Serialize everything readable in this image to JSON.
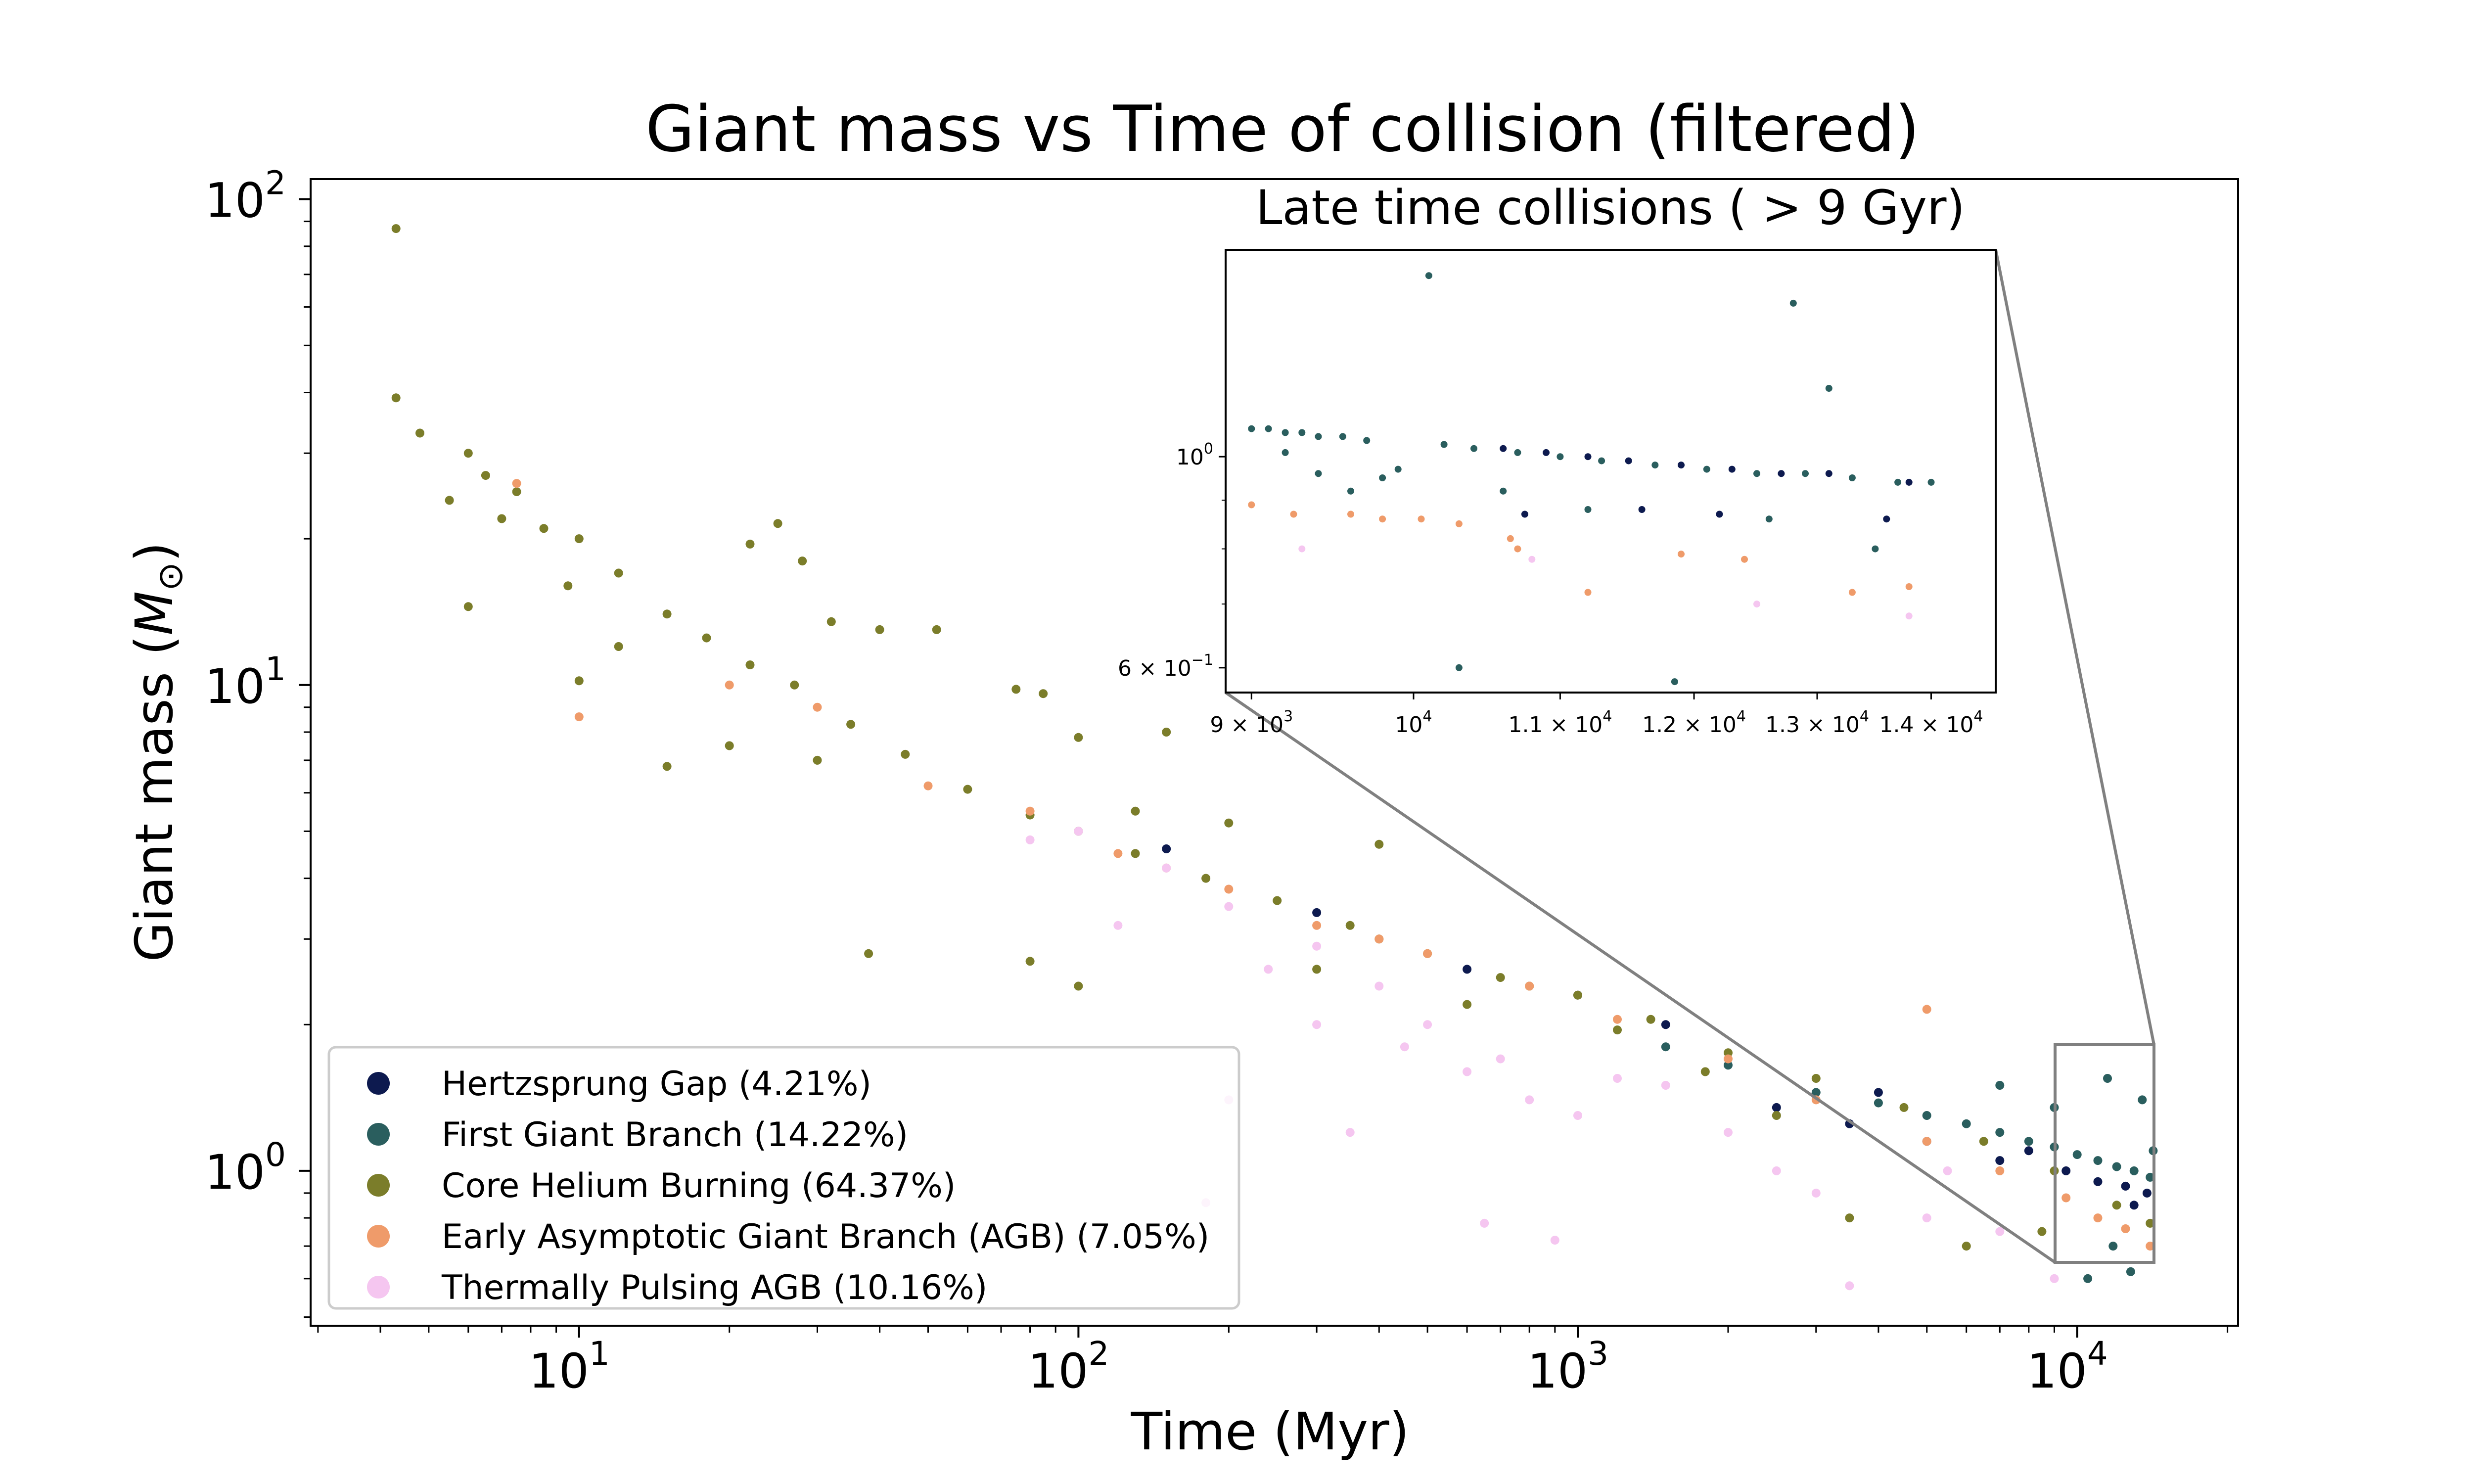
{
  "chart_data": [
    {
      "type": "scatter",
      "title": "Giant mass vs Time of collision (filtered)",
      "xlabel": "Time (Myr)",
      "ylabel_prefix": "Giant mass (",
      "ylabel_symbol": "M",
      "ylabel_subscript": "⊙",
      "ylabel_suffix": ")",
      "xscale": "log",
      "yscale": "log",
      "xlim": [
        2.9,
        21000
      ],
      "ylim": [
        0.48,
        110
      ],
      "grid": false,
      "legend_position": "lower-left",
      "x_ticks": [
        {
          "value": 10,
          "base": "10",
          "exp": "1"
        },
        {
          "value": 100,
          "base": "10",
          "exp": "2"
        },
        {
          "value": 1000,
          "base": "10",
          "exp": "3"
        },
        {
          "value": 10000,
          "base": "10",
          "exp": "4"
        }
      ],
      "y_ticks": [
        {
          "value": 1,
          "base": "10",
          "exp": "0"
        },
        {
          "value": 10,
          "base": "10",
          "exp": "1"
        },
        {
          "value": 100,
          "base": "10",
          "exp": "2"
        }
      ],
      "series": [
        {
          "name": "Hertzsprung Gap (4.21%)",
          "color": "#0d1a4f",
          "points": [
            [
              150,
              4.6
            ],
            [
              300,
              3.4
            ],
            [
              600,
              2.6
            ],
            [
              1000,
              2.3
            ],
            [
              1500,
              2.0
            ],
            [
              2500,
              1.35
            ],
            [
              3500,
              1.25
            ],
            [
              5000,
              1.15
            ],
            [
              7000,
              1.05
            ],
            [
              9500,
              1.0
            ],
            [
              11000,
              0.95
            ],
            [
              12500,
              0.93
            ],
            [
              13800,
              0.9
            ],
            [
              4000,
              1.45
            ],
            [
              8000,
              1.1
            ],
            [
              13000,
              0.85
            ]
          ]
        },
        {
          "name": "First Giant Branch (14.22%)",
          "color": "#2a5e5e",
          "points": [
            [
              1500,
              1.8
            ],
            [
              2000,
              1.65
            ],
            [
              3000,
              1.45
            ],
            [
              4000,
              1.38
            ],
            [
              5000,
              1.3
            ],
            [
              6000,
              1.25
            ],
            [
              7000,
              1.2
            ],
            [
              8000,
              1.15
            ],
            [
              9000,
              1.12
            ],
            [
              10000,
              1.08
            ],
            [
              11000,
              1.05
            ],
            [
              12000,
              1.02
            ],
            [
              13000,
              1.0
            ],
            [
              14000,
              0.97
            ],
            [
              11500,
              1.55
            ],
            [
              13500,
              1.4
            ],
            [
              10500,
              0.6
            ],
            [
              12800,
              0.62
            ],
            [
              11800,
              0.7
            ],
            [
              7000,
              1.5
            ],
            [
              9000,
              1.35
            ],
            [
              14200,
              1.1
            ]
          ]
        },
        {
          "name": "Core Helium Burning (64.37%)",
          "color": "#7b7d2a",
          "points": [
            [
              4.3,
              87
            ],
            [
              4.3,
              39
            ],
            [
              4.8,
              33
            ],
            [
              5.5,
              24
            ],
            [
              6.0,
              30
            ],
            [
              6.5,
              27
            ],
            [
              7.5,
              25
            ],
            [
              8.5,
              21
            ],
            [
              10,
              20
            ],
            [
              12,
              17
            ],
            [
              15,
              14
            ],
            [
              18,
              12.5
            ],
            [
              22,
              11
            ],
            [
              27,
              10
            ],
            [
              35,
              8.3
            ],
            [
              45,
              7.2
            ],
            [
              60,
              6.1
            ],
            [
              80,
              5.4
            ],
            [
              100,
              5.0
            ],
            [
              130,
              4.5
            ],
            [
              180,
              4.0
            ],
            [
              250,
              3.6
            ],
            [
              350,
              3.2
            ],
            [
              500,
              2.8
            ],
            [
              700,
              2.5
            ],
            [
              1000,
              2.3
            ],
            [
              1400,
              2.05
            ],
            [
              2000,
              1.75
            ],
            [
              3000,
              1.55
            ],
            [
              4500,
              1.35
            ],
            [
              6500,
              1.15
            ],
            [
              9000,
              1.0
            ],
            [
              12000,
              0.85
            ],
            [
              14000,
              0.78
            ],
            [
              22,
              19.5
            ],
            [
              25,
              21.5
            ],
            [
              28,
              18
            ],
            [
              32,
              13.5
            ],
            [
              40,
              13
            ],
            [
              52,
              13
            ],
            [
              75,
              9.8
            ],
            [
              85,
              9.6
            ],
            [
              100,
              7.8
            ],
            [
              130,
              5.5
            ],
            [
              150,
              8
            ],
            [
              200,
              5.2
            ],
            [
              400,
              4.7
            ],
            [
              300,
              2.6
            ],
            [
              400,
              3.0
            ],
            [
              600,
              2.2
            ],
            [
              800,
              2.4
            ],
            [
              1200,
              1.95
            ],
            [
              1800,
              1.6
            ],
            [
              2500,
              1.3
            ],
            [
              3500,
              0.8
            ],
            [
              6000,
              0.7
            ],
            [
              8500,
              0.75
            ],
            [
              10,
              10.2
            ],
            [
              20,
              7.5
            ],
            [
              30,
              7.0
            ],
            [
              38,
              2.8
            ],
            [
              80,
              2.7
            ],
            [
              100,
              2.4
            ],
            [
              15,
              6.8
            ],
            [
              6,
              14.5
            ],
            [
              7,
              22
            ],
            [
              9.5,
              16
            ],
            [
              12,
              12
            ]
          ]
        },
        {
          "name": "Early Asymptotic Giant Branch (AGB) (7.05%)",
          "color": "#ef9b6a",
          "points": [
            [
              10,
              8.6
            ],
            [
              20,
              10
            ],
            [
              30,
              9
            ],
            [
              50,
              6.2
            ],
            [
              80,
              5.5
            ],
            [
              120,
              4.5
            ],
            [
              200,
              3.8
            ],
            [
              300,
              3.2
            ],
            [
              500,
              2.8
            ],
            [
              800,
              2.4
            ],
            [
              1200,
              2.05
            ],
            [
              2000,
              1.7
            ],
            [
              3000,
              1.4
            ],
            [
              5000,
              2.15
            ],
            [
              5000,
              1.15
            ],
            [
              7000,
              1.0
            ],
            [
              9500,
              0.88
            ],
            [
              11000,
              0.8
            ],
            [
              12500,
              0.76
            ],
            [
              14000,
              0.7
            ],
            [
              7.5,
              26
            ],
            [
              400,
              3.0
            ],
            [
              150,
              4.2
            ]
          ]
        },
        {
          "name": "Thermally Pulsing AGB (10.16%)",
          "color": "#f5c6f0",
          "points": [
            [
              80,
              4.8
            ],
            [
              100,
              5.0
            ],
            [
              150,
              4.2
            ],
            [
              200,
              3.5
            ],
            [
              300,
              2.9
            ],
            [
              400,
              2.4
            ],
            [
              500,
              2.0
            ],
            [
              600,
              1.6
            ],
            [
              700,
              1.7
            ],
            [
              800,
              1.4
            ],
            [
              1000,
              1.3
            ],
            [
              1200,
              1.55
            ],
            [
              1500,
              1.5
            ],
            [
              2000,
              1.2
            ],
            [
              2500,
              1.0
            ],
            [
              3000,
              0.9
            ],
            [
              5000,
              0.8
            ],
            [
              7000,
              0.75
            ],
            [
              200,
              1.4
            ],
            [
              350,
              1.2
            ],
            [
              180,
              0.86
            ],
            [
              650,
              0.78
            ],
            [
              900,
              0.72
            ],
            [
              3500,
              0.58
            ],
            [
              5500,
              1.0
            ],
            [
              9000,
              0.6
            ],
            [
              300,
              2.0
            ],
            [
              450,
              1.8
            ],
            [
              120,
              3.2
            ],
            [
              240,
              2.6
            ]
          ]
        }
      ]
    },
    {
      "type": "scatter",
      "title": "Late time collisions ( > 9 Gyr)",
      "xscale": "log",
      "yscale": "log",
      "xlim": [
        8850,
        14600
      ],
      "ylim": [
        0.565,
        1.65
      ],
      "grid": false,
      "x_ticks": [
        {
          "value": 9000,
          "mant": "9",
          "exp": "3"
        },
        {
          "value": 10000,
          "mant": "",
          "exp": "4"
        },
        {
          "value": 11000,
          "mant": "1.1",
          "exp": "4"
        },
        {
          "value": 12000,
          "mant": "1.2",
          "exp": "4"
        },
        {
          "value": 13000,
          "mant": "1.3",
          "exp": "4"
        },
        {
          "value": 14000,
          "mant": "1.4",
          "exp": "4"
        }
      ],
      "y_ticks": [
        {
          "value": 1,
          "mant": "",
          "exp": "0"
        },
        {
          "value": 0.6,
          "mant": "6",
          "exp": "−1"
        }
      ],
      "series_points": [
        {
          "color": "#2a5e5e",
          "points": [
            [
              9000,
              1.07
            ],
            [
              9100,
              1.07
            ],
            [
              9200,
              1.06
            ],
            [
              9300,
              1.06
            ],
            [
              9400,
              1.05
            ],
            [
              9550,
              1.05
            ],
            [
              9700,
              1.04
            ],
            [
              10200,
              1.03
            ],
            [
              10400,
              1.02
            ],
            [
              10700,
              1.01
            ],
            [
              11000,
              1.0
            ],
            [
              11300,
              0.99
            ],
            [
              11700,
              0.98
            ],
            [
              12100,
              0.97
            ],
            [
              12500,
              0.96
            ],
            [
              12900,
              0.96
            ],
            [
              13300,
              0.95
            ],
            [
              13700,
              0.94
            ],
            [
              14000,
              0.94
            ],
            [
              10100,
              1.55
            ],
            [
              12800,
              1.45
            ],
            [
              13100,
              1.18
            ],
            [
              10300,
              0.6
            ],
            [
              11850,
              0.58
            ],
            [
              9400,
              0.96
            ],
            [
              9600,
              0.92
            ],
            [
              9800,
              0.95
            ],
            [
              9200,
              1.01
            ],
            [
              9900,
              0.97
            ],
            [
              10600,
              0.92
            ],
            [
              11200,
              0.88
            ],
            [
              12600,
              0.86
            ],
            [
              13500,
              0.8
            ]
          ]
        },
        {
          "color": "#0d1a4f",
          "points": [
            [
              10900,
              1.01
            ],
            [
              11200,
              1.0
            ],
            [
              11500,
              0.99
            ],
            [
              11900,
              0.98
            ],
            [
              12300,
              0.97
            ],
            [
              12700,
              0.96
            ],
            [
              13100,
              0.96
            ],
            [
              13800,
              0.94
            ],
            [
              10750,
              0.87
            ],
            [
              11600,
              0.88
            ],
            [
              12200,
              0.87
            ],
            [
              13600,
              0.86
            ],
            [
              10600,
              1.02
            ]
          ]
        },
        {
          "color": "#ef9b6a",
          "points": [
            [
              9000,
              0.89
            ],
            [
              9250,
              0.87
            ],
            [
              9600,
              0.87
            ],
            [
              10050,
              0.86
            ],
            [
              10300,
              0.85
            ],
            [
              10650,
              0.82
            ],
            [
              11200,
              0.72
            ],
            [
              11900,
              0.79
            ],
            [
              12400,
              0.78
            ],
            [
              13300,
              0.72
            ],
            [
              13800,
              0.73
            ],
            [
              9800,
              0.86
            ],
            [
              10700,
              0.8
            ]
          ]
        },
        {
          "color": "#f5c6f0",
          "points": [
            [
              9300,
              0.8
            ],
            [
              10800,
              0.78
            ],
            [
              12500,
              0.7
            ],
            [
              13800,
              0.68
            ]
          ]
        }
      ]
    }
  ]
}
